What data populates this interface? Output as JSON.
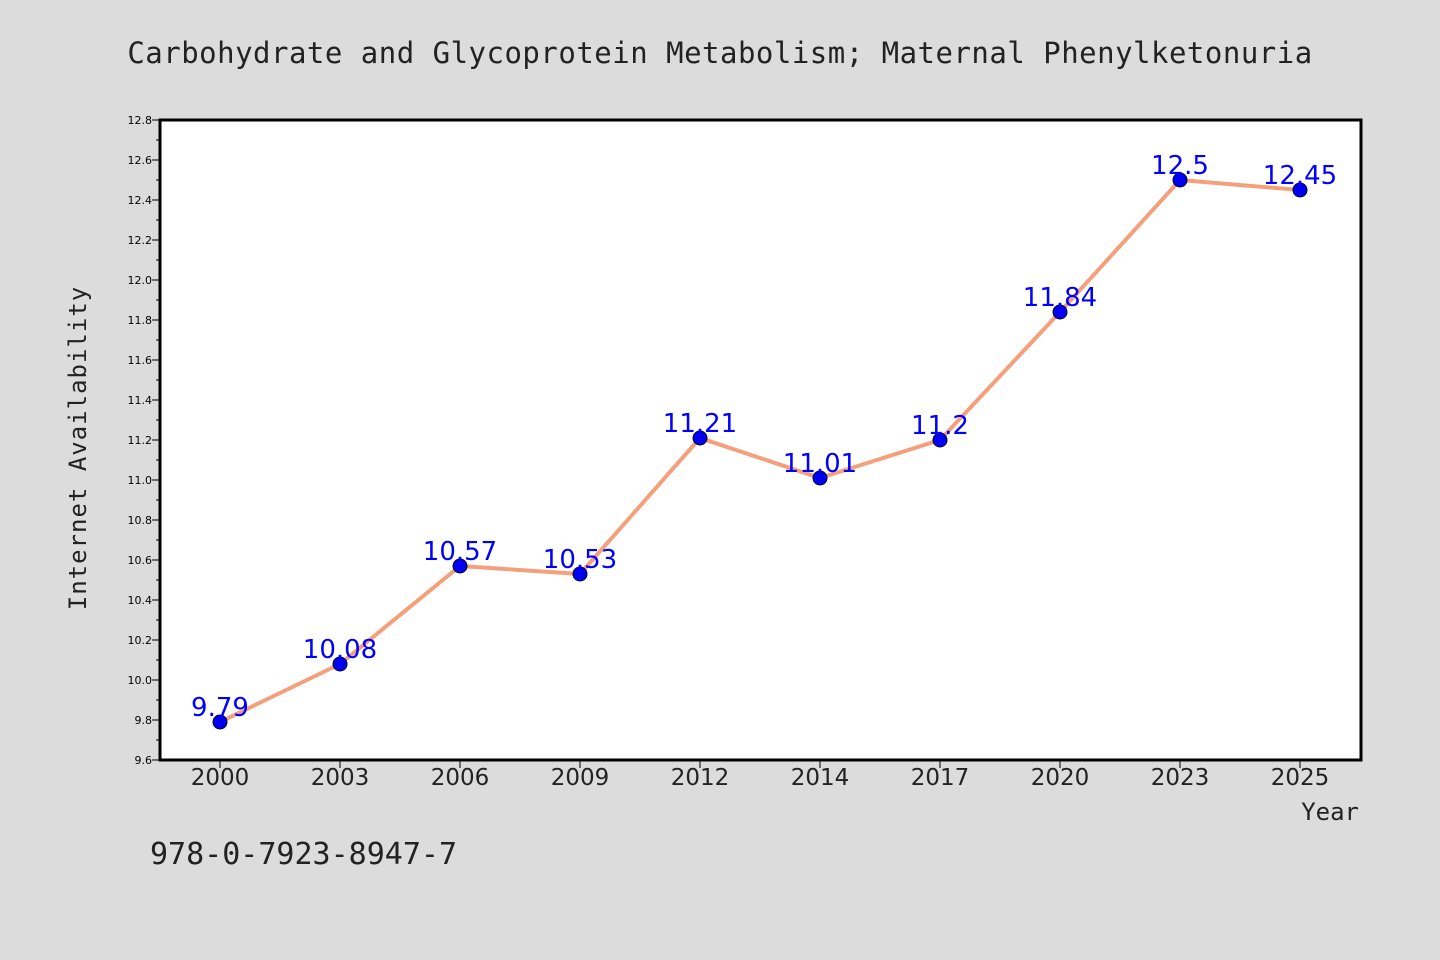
{
  "colors": {
    "background": "#dcdcdc",
    "plot_background": "#ffffff",
    "line": "#f4a07c",
    "marker": "#0000ee",
    "data_label": "#0000ff",
    "text": "#222222",
    "axis": "#000000"
  },
  "isbn": "978-0-7923-8947-7",
  "chart_data": {
    "type": "line",
    "title": "Carbohydrate and Glycoprotein Metabolism; Maternal Phenylketonuria",
    "xlabel": "Year",
    "ylabel": "Internet Availability",
    "categories": [
      "2000",
      "2003",
      "2006",
      "2009",
      "2012",
      "2014",
      "2017",
      "2020",
      "2023",
      "2025"
    ],
    "series": [
      {
        "values": [
          9.79,
          10.08,
          10.57,
          10.53,
          11.21,
          11.01,
          11.2,
          11.84,
          12.5,
          12.45
        ],
        "labels": [
          "9.79",
          "10.08",
          "10.57",
          "10.53",
          "11.21",
          "11.01",
          "11.2",
          "11.84",
          "12.5",
          "12.45"
        ]
      }
    ],
    "ylim": [
      9.6,
      12.8
    ],
    "y_ticks": [
      "9.6",
      "9.8",
      "10.0",
      "10.2",
      "10.4",
      "10.6",
      "10.8",
      "11.0",
      "11.2",
      "11.4",
      "11.6",
      "11.8",
      "12.0",
      "12.2",
      "12.4",
      "12.6",
      "12.8"
    ],
    "grid": false,
    "legend": "none"
  }
}
